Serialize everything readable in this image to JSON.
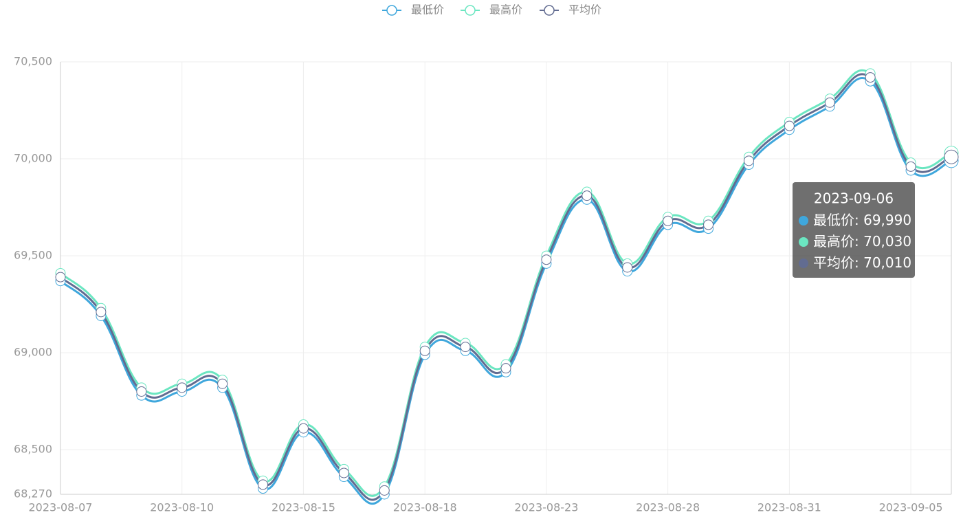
{
  "chart_data": {
    "type": "line",
    "smooth": true,
    "categories": [
      "2023-08-07",
      null,
      null,
      "2023-08-10",
      null,
      null,
      "2023-08-15",
      null,
      null,
      "2023-08-18",
      null,
      null,
      "2023-08-23",
      null,
      null,
      "2023-08-28",
      null,
      null,
      "2023-08-31",
      null,
      null,
      "2023-09-05",
      "2023-09-06"
    ],
    "label_interval": 3,
    "series": [
      {
        "name": "最低价",
        "color": "#3fa7dc",
        "values": [
          69370,
          69190,
          68780,
          68800,
          68820,
          68300,
          68590,
          68360,
          68270,
          68990,
          69010,
          68900,
          69460,
          69790,
          69420,
          69660,
          69640,
          69970,
          70150,
          70270,
          70400,
          69940,
          69990
        ],
        "value_labels": [
          null,
          null,
          null,
          null,
          null,
          null,
          null,
          null,
          null,
          null,
          null,
          null,
          null,
          null,
          null,
          null,
          null,
          null,
          null,
          null,
          null,
          null,
          "69,990"
        ]
      },
      {
        "name": "最高价",
        "color": "#6be6c1",
        "values": [
          69410,
          69230,
          68820,
          68840,
          68860,
          68340,
          68630,
          68400,
          68310,
          69030,
          69050,
          68940,
          69500,
          69830,
          69460,
          69700,
          69680,
          70010,
          70190,
          70310,
          70440,
          69980,
          70030
        ],
        "value_labels": [
          null,
          null,
          null,
          null,
          null,
          null,
          null,
          null,
          null,
          null,
          null,
          null,
          null,
          null,
          null,
          null,
          null,
          null,
          null,
          null,
          null,
          null,
          "70,030"
        ]
      },
      {
        "name": "平均价",
        "color": "#626c91",
        "values": [
          69390,
          69210,
          68800,
          68820,
          68840,
          68320,
          68610,
          68380,
          68290,
          69010,
          69030,
          68920,
          69480,
          69810,
          69440,
          69680,
          69660,
          69990,
          70170,
          70290,
          70420,
          69960,
          70010
        ],
        "value_labels": [
          null,
          null,
          null,
          null,
          null,
          null,
          null,
          null,
          null,
          null,
          null,
          null,
          null,
          null,
          null,
          null,
          null,
          null,
          null,
          null,
          null,
          null,
          "70,010"
        ]
      }
    ],
    "ylim": [
      68270,
      70500
    ],
    "yticks": [
      {
        "value": 68270,
        "label": "68,270"
      },
      {
        "value": 68500,
        "label": "68,500"
      },
      {
        "value": 69000,
        "label": "69,000"
      },
      {
        "value": 69500,
        "label": "69,500"
      },
      {
        "value": 70000,
        "label": "70,000"
      },
      {
        "value": 70500,
        "label": "70,500"
      }
    ],
    "grid": true,
    "legend": "top",
    "tooltip_index": 22
  }
}
